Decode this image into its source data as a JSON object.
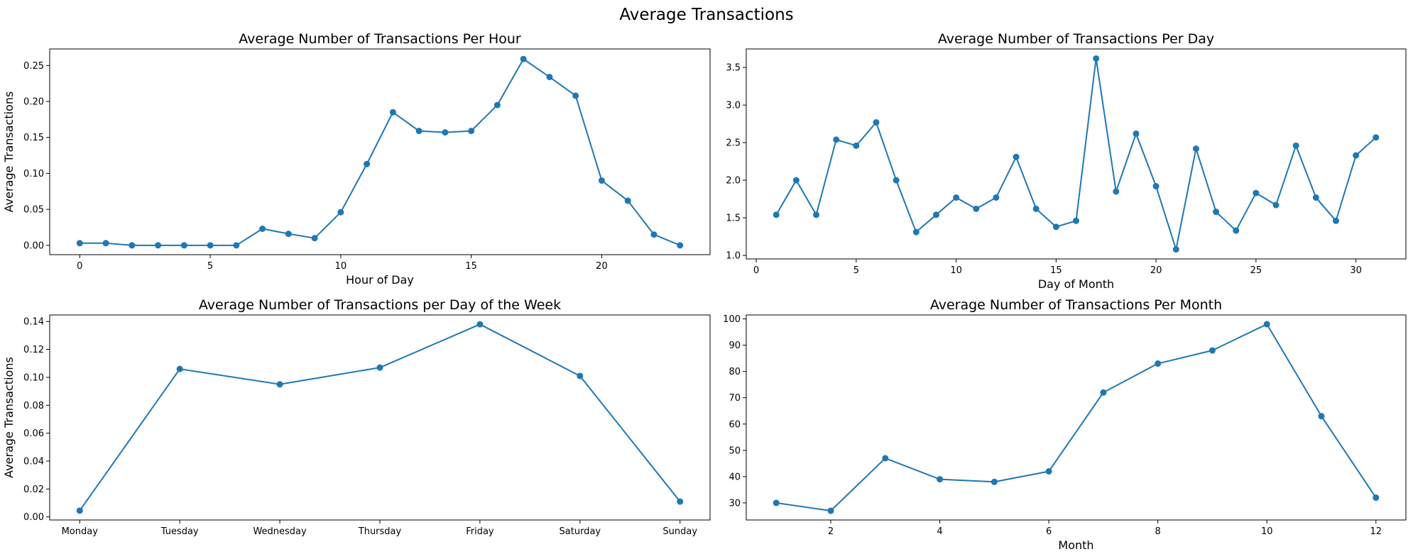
{
  "figure": {
    "suptitle": "Average Transactions",
    "series_color": "#1f77b4"
  },
  "chart_data": [
    {
      "type": "line",
      "title": "Average Number of Transactions Per Hour",
      "xlabel": "Hour of Day",
      "ylabel": "Average Transactions",
      "x": [
        0,
        1,
        2,
        3,
        4,
        5,
        6,
        7,
        8,
        9,
        10,
        11,
        12,
        13,
        14,
        15,
        16,
        17,
        18,
        19,
        20,
        21,
        22,
        23
      ],
      "series": [
        {
          "values": [
            0.003,
            0.003,
            0.0,
            0.0,
            0.0,
            0.0,
            0.0,
            0.023,
            0.016,
            0.01,
            0.046,
            0.113,
            0.185,
            0.159,
            0.157,
            0.159,
            0.195,
            0.259,
            0.234,
            0.208,
            0.09,
            0.062,
            0.015,
            0.0
          ]
        }
      ],
      "xlim": [
        -1.15,
        24.15
      ],
      "ylim": [
        -0.013,
        0.273
      ],
      "xticks": [
        0,
        5,
        10,
        15,
        20
      ],
      "xtick_labels": [
        "0",
        "5",
        "10",
        "15",
        "20"
      ],
      "yticks": [
        0.0,
        0.05,
        0.1,
        0.15,
        0.2,
        0.25
      ],
      "ytick_labels": [
        "0.00",
        "0.05",
        "0.10",
        "0.15",
        "0.20",
        "0.25"
      ],
      "markers": true,
      "grid": false
    },
    {
      "type": "line",
      "title": "Average Number of Transactions Per Day",
      "xlabel": "Day of Month",
      "ylabel": "",
      "x": [
        1,
        2,
        3,
        4,
        5,
        6,
        7,
        8,
        9,
        10,
        11,
        12,
        13,
        14,
        15,
        16,
        17,
        18,
        19,
        20,
        21,
        22,
        23,
        24,
        25,
        26,
        27,
        28,
        29,
        30,
        31
      ],
      "series": [
        {
          "values": [
            1.54,
            2.0,
            1.54,
            2.54,
            2.46,
            2.77,
            2.0,
            1.31,
            1.54,
            1.77,
            1.62,
            1.77,
            2.31,
            1.62,
            1.38,
            1.46,
            3.62,
            1.85,
            2.62,
            1.92,
            1.08,
            2.42,
            1.58,
            1.33,
            1.83,
            1.67,
            2.46,
            1.77,
            1.46,
            2.33,
            2.57
          ]
        }
      ],
      "xlim": [
        -0.5,
        32.5
      ],
      "ylim": [
        0.953,
        3.747
      ],
      "xticks": [
        0,
        5,
        10,
        15,
        20,
        25,
        30
      ],
      "xtick_labels": [
        "0",
        "5",
        "10",
        "15",
        "20",
        "25",
        "30"
      ],
      "yticks": [
        1.0,
        1.5,
        2.0,
        2.5,
        3.0,
        3.5
      ],
      "ytick_labels": [
        "1.0",
        "1.5",
        "2.0",
        "2.5",
        "3.0",
        "3.5"
      ],
      "markers": true,
      "grid": false
    },
    {
      "type": "line",
      "title": "Average Number of Transactions per Day of the Week",
      "xlabel": "",
      "ylabel": "Average Transactions",
      "categories": [
        "Monday",
        "Tuesday",
        "Wednesday",
        "Thursday",
        "Friday",
        "Saturday",
        "Sunday"
      ],
      "series": [
        {
          "values": [
            0.0045,
            0.106,
            0.095,
            0.107,
            0.138,
            0.101,
            0.011
          ]
        }
      ],
      "xlim": [
        -0.3,
        6.3
      ],
      "ylim": [
        -0.0022,
        0.1447
      ],
      "yticks": [
        0.0,
        0.02,
        0.04,
        0.06,
        0.08,
        0.1,
        0.12,
        0.14
      ],
      "ytick_labels": [
        "0.00",
        "0.02",
        "0.04",
        "0.06",
        "0.08",
        "0.10",
        "0.12",
        "0.14"
      ],
      "markers": true,
      "grid": false
    },
    {
      "type": "line",
      "title": "Average Number of Transactions Per Month",
      "xlabel": "Month",
      "ylabel": "",
      "x": [
        1,
        2,
        3,
        4,
        5,
        6,
        7,
        8,
        9,
        10,
        11,
        12
      ],
      "series": [
        {
          "values": [
            30,
            27,
            47,
            39,
            38,
            42,
            72,
            83,
            88,
            98,
            63,
            32
          ]
        }
      ],
      "xlim": [
        0.45,
        12.55
      ],
      "ylim": [
        23.5,
        101.5
      ],
      "xticks": [
        2,
        4,
        6,
        8,
        10,
        12
      ],
      "xtick_labels": [
        "2",
        "4",
        "6",
        "8",
        "10",
        "12"
      ],
      "yticks": [
        30,
        40,
        50,
        60,
        70,
        80,
        90,
        100
      ],
      "ytick_labels": [
        "30",
        "40",
        "50",
        "60",
        "70",
        "80",
        "90",
        "100"
      ],
      "markers": true,
      "grid": false
    }
  ]
}
